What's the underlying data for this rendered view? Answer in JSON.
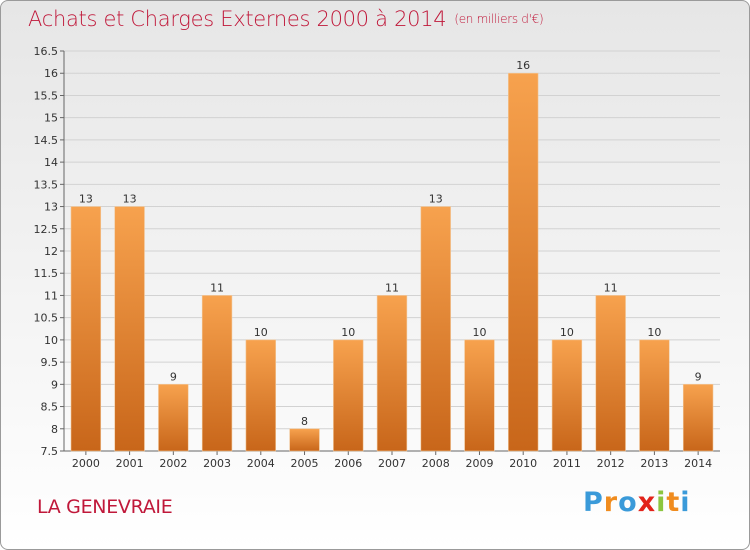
{
  "header": {
    "title": "Achats et Charges Externes 2000 à 2014",
    "subtitle": "(en milliers d'€)"
  },
  "footer": {
    "place": "LA GENEVRAIE",
    "logo_text": "Proxiti",
    "logo_colors": [
      "#3a9ad9",
      "#f08c1e",
      "#3a9ad9",
      "#e2231a",
      "#8cc63f",
      "#f08c1e",
      "#3a9ad9"
    ]
  },
  "colors": {
    "bar_light": "#f7a24e",
    "bar_dark": "#c8661a",
    "title": "#c0183a"
  },
  "chart_data": {
    "type": "bar",
    "title": "Achats et Charges Externes 2000 à 2014",
    "subtitle": "(en milliers d'€)",
    "categories": [
      "2000",
      "2001",
      "2002",
      "2003",
      "2004",
      "2005",
      "2006",
      "2007",
      "2008",
      "2009",
      "2010",
      "2011",
      "2012",
      "2013",
      "2014"
    ],
    "values": [
      13,
      13,
      9,
      11,
      10,
      8,
      10,
      11,
      13,
      10,
      16,
      10,
      11,
      10,
      9
    ],
    "ylim": [
      7.5,
      16.5
    ],
    "yticks": [
      "7.5",
      "8",
      "8.5",
      "9",
      "9.5",
      "10",
      "10.5",
      "11",
      "11.5",
      "12",
      "12.5",
      "13",
      "13.5",
      "14",
      "14.5",
      "15",
      "15.5",
      "16",
      "16.5"
    ],
    "grid": true,
    "data_labels": true
  }
}
